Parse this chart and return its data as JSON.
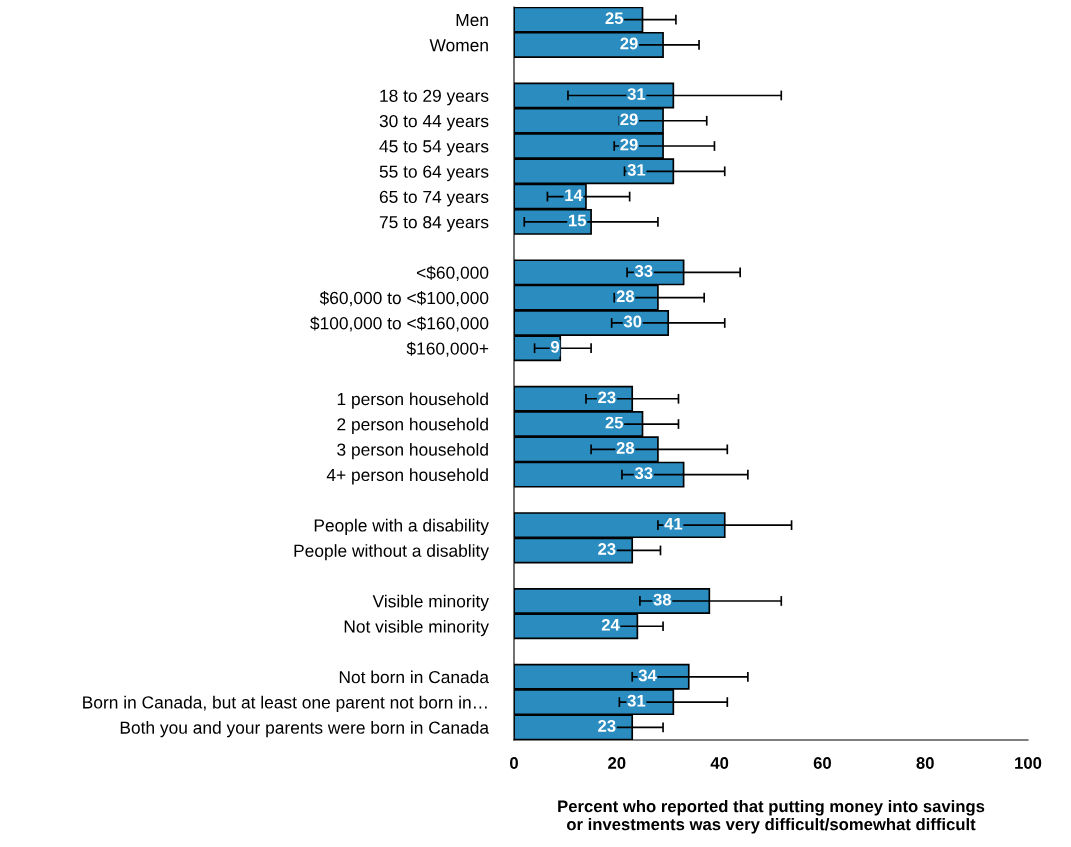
{
  "chart_data": {
    "type": "bar",
    "orientation": "horizontal",
    "categories": [
      "Men",
      "Women",
      null,
      "18 to 29 years",
      "30 to 44 years",
      "45 to 54 years",
      "55 to 64 years",
      "65 to 74 years",
      "75 to 84 years",
      null,
      "<$60,000",
      "$60,000 to <$100,000",
      "$100,000 to <$160,000",
      "$160,000+",
      null,
      "1 person household",
      "2 person household",
      "3 person household",
      "4+ person household",
      null,
      "People with a disability",
      "People without a disablity",
      null,
      "Visible minority",
      "Not visible minority",
      null,
      "Not born in Canada",
      "Born in Canada, but at least one parent not born in…",
      "Both you and your parents were born in Canada"
    ],
    "values": [
      25,
      29,
      null,
      31,
      29,
      29,
      31,
      14,
      15,
      null,
      33,
      28,
      30,
      9,
      null,
      23,
      25,
      28,
      33,
      null,
      41,
      23,
      null,
      38,
      24,
      null,
      34,
      31,
      23
    ],
    "errors": [
      [
        18.5,
        31.5
      ],
      [
        22,
        36
      ],
      null,
      [
        10.5,
        52
      ],
      [
        20.5,
        37.5
      ],
      [
        19.5,
        39
      ],
      [
        21.5,
        41
      ],
      [
        6.5,
        22.5
      ],
      [
        2,
        28
      ],
      null,
      [
        22,
        44
      ],
      [
        19.5,
        37
      ],
      [
        19,
        41
      ],
      [
        4,
        15
      ],
      null,
      [
        14,
        32
      ],
      [
        18,
        32
      ],
      [
        15,
        41.5
      ],
      [
        21,
        45.5
      ],
      null,
      [
        28,
        54
      ],
      [
        17.5,
        28.5
      ],
      null,
      [
        24.5,
        52
      ],
      [
        19,
        29
      ],
      null,
      [
        23,
        45.5
      ],
      [
        20.5,
        41.5
      ],
      [
        17,
        29
      ]
    ],
    "color": "#2b8cc0",
    "data_labels": true,
    "xlim": [
      0,
      100
    ],
    "xticks": [
      0,
      20,
      40,
      60,
      80,
      100
    ],
    "xlabel": "Percent who reported that putting money into savings\nor investments was very difficult/somewhat difficult",
    "grid": false,
    "legend": false
  }
}
